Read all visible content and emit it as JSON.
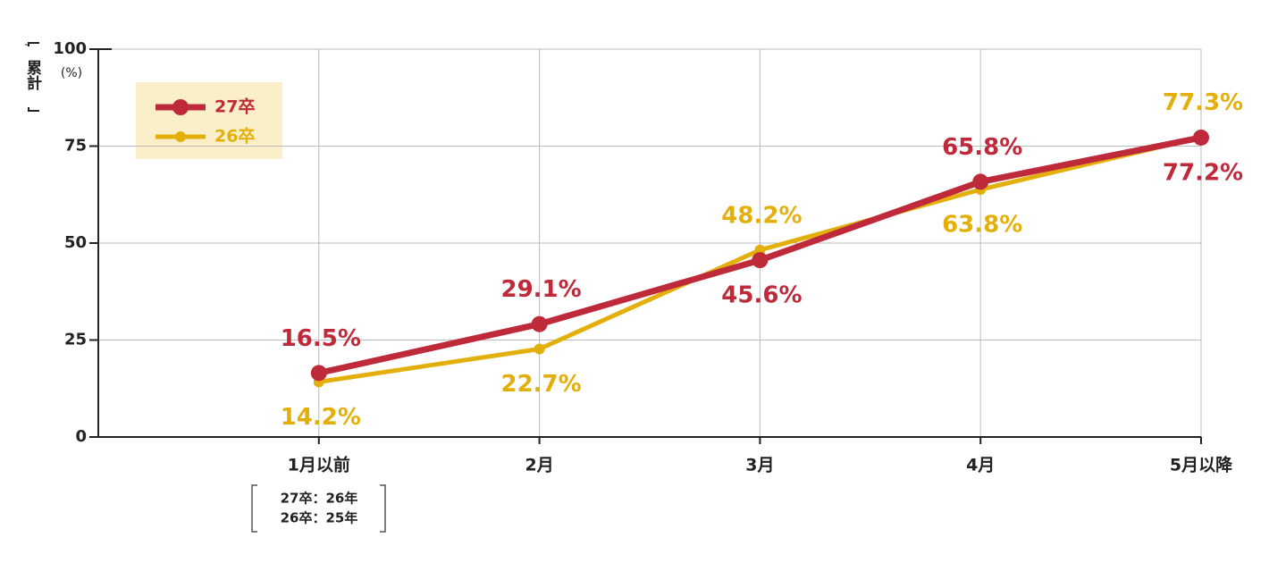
{
  "chart_data": {
    "type": "line",
    "y_label": "累計",
    "y_unit": "(%)",
    "categories": [
      "1月以前",
      "2月",
      "3月",
      "4月",
      "5月以降"
    ],
    "series": [
      {
        "name": "27卒",
        "color": "#bf2a3a",
        "values": [
          16.5,
          29.1,
          45.6,
          65.8,
          77.2
        ],
        "value_labels": [
          "16.5%",
          "29.1%",
          "45.6%",
          "65.8%",
          "77.2%"
        ]
      },
      {
        "name": "26卒",
        "color": "#e3b00b",
        "values": [
          14.2,
          22.7,
          48.2,
          63.8,
          77.3
        ],
        "value_labels": [
          "14.2%",
          "22.7%",
          "48.2%",
          "63.8%",
          "77.3%"
        ]
      }
    ],
    "ylim": [
      0,
      100
    ],
    "yticks": [
      0,
      25,
      50,
      75,
      100
    ],
    "grid": true,
    "note": [
      "27卒：26年",
      "26卒：25年"
    ]
  }
}
